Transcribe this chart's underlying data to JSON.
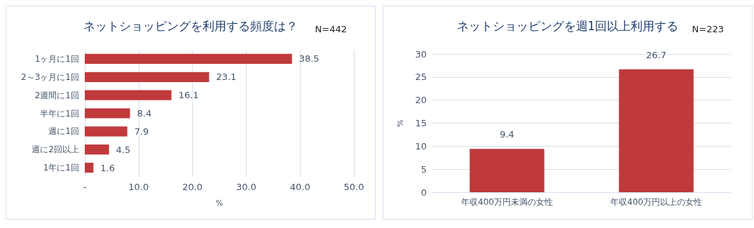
{
  "chart_data": [
    {
      "type": "bar",
      "orientation": "horizontal",
      "title": "ネットショッピングを利用する頻度は？",
      "annotations": [
        "N=442"
      ],
      "xlabel": "%",
      "categories": [
        "1ヶ月に1回",
        "2～3ヶ月に1回",
        "2週間に1回",
        "半年に1回",
        "週に1回",
        "週に2回以上",
        "1年に1回"
      ],
      "values": [
        38.5,
        23.1,
        16.1,
        8.4,
        7.9,
        4.5,
        1.6
      ],
      "color": "#c0393b",
      "xlim": [
        0,
        50
      ],
      "xticks": [
        {
          "value": 0,
          "label": "-"
        },
        {
          "value": 10,
          "label": "10.0"
        },
        {
          "value": 20,
          "label": "20.0"
        },
        {
          "value": 30,
          "label": "30.0"
        },
        {
          "value": 40,
          "label": "40.0"
        },
        {
          "value": 50,
          "label": "50.0"
        }
      ],
      "grid": "x",
      "data_labels": true
    },
    {
      "type": "bar",
      "title": "ネットショッピングを週1回以上利用する",
      "annotations": [
        "N=223"
      ],
      "ylabel": "%",
      "categories": [
        "年収400万円未満の女性",
        "年収400万円以上の女性"
      ],
      "values": [
        9.4,
        26.7
      ],
      "color": "#c0393b",
      "ylim": [
        0,
        30
      ],
      "yticks": [
        0,
        5,
        10,
        15,
        20,
        25,
        30
      ],
      "grid": "y",
      "data_labels": true
    }
  ]
}
